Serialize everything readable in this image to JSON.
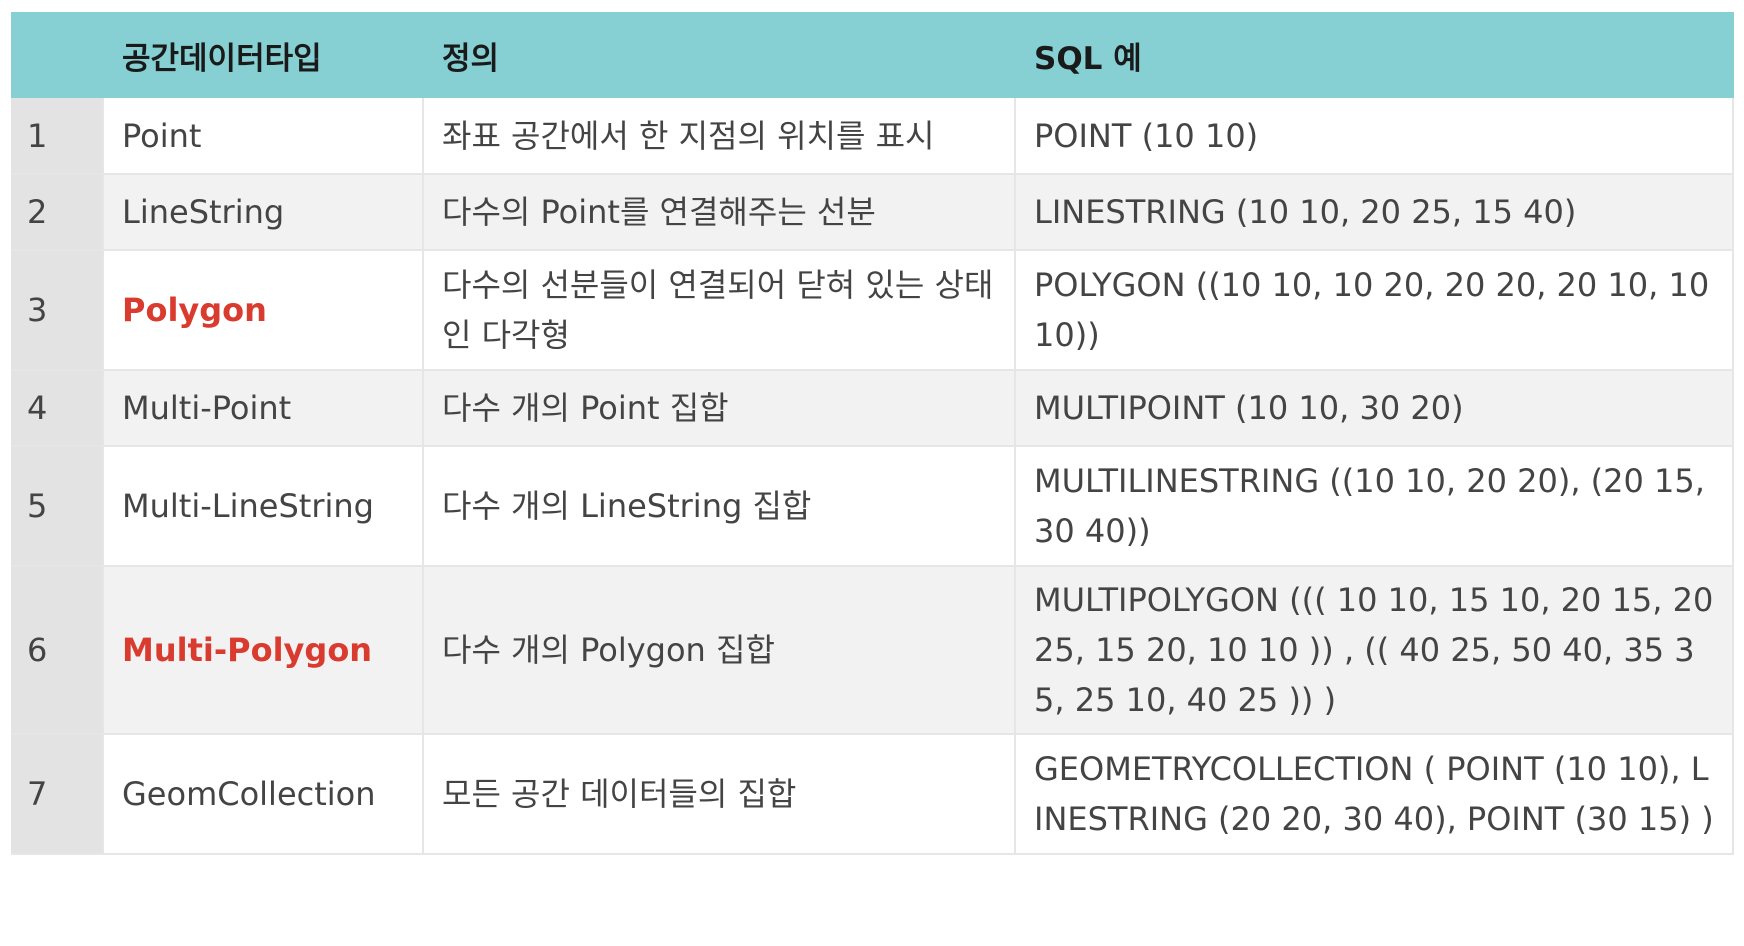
{
  "table": {
    "headers": {
      "number": "",
      "type": "공간데이터타입",
      "definition": "정의",
      "sql": "SQL 예"
    },
    "highlight_color": "#d93b2f",
    "header_background": "#86d0d4",
    "rows": [
      {
        "number": "1",
        "type": "Point",
        "highlight": false,
        "definition": "좌표 공간에서 한 지점의 위치를 표시",
        "sql": "POINT (10 10)"
      },
      {
        "number": "2",
        "type": "LineString",
        "highlight": false,
        "definition": "다수의 Point를 연결해주는 선분",
        "sql": "LINESTRING (10 10, 20 25, 15 40)"
      },
      {
        "number": "3",
        "type": "Polygon",
        "highlight": true,
        "definition": "다수의 선분들이 연결되어 닫혀 있는 상태인 다각형",
        "sql": "POLYGON ((10 10, 10 20, 20 20, 20 10, 10 10))"
      },
      {
        "number": "4",
        "type": "Multi-Point",
        "highlight": false,
        "definition": "다수 개의 Point 집합",
        "sql": "MULTIPOINT (10 10, 30 20)"
      },
      {
        "number": "5",
        "type": "Multi-LineString",
        "highlight": false,
        "definition": "다수 개의 LineString 집합",
        "sql": "MULTILINESTRING ((10 10, 20 20), (20 15, 30 40))"
      },
      {
        "number": "6",
        "type": "Multi-Polygon",
        "highlight": true,
        "definition": "다수 개의 Polygon 집합",
        "sql": "MULTIPOLYGON ((( 10 10, 15 10, 20 15, 20 25, 15 20, 10 10 )) , (( 40 25, 50 40, 35 35, 25 10, 40 25 )) )"
      },
      {
        "number": "7",
        "type": "GeomCollection",
        "highlight": false,
        "definition": "모든 공간 데이터들의 집합",
        "sql": "GEOMETRYCOLLECTION ( POINT (10 10), LINESTRING (20 20, 30 40), POINT (30 15) )"
      }
    ]
  }
}
